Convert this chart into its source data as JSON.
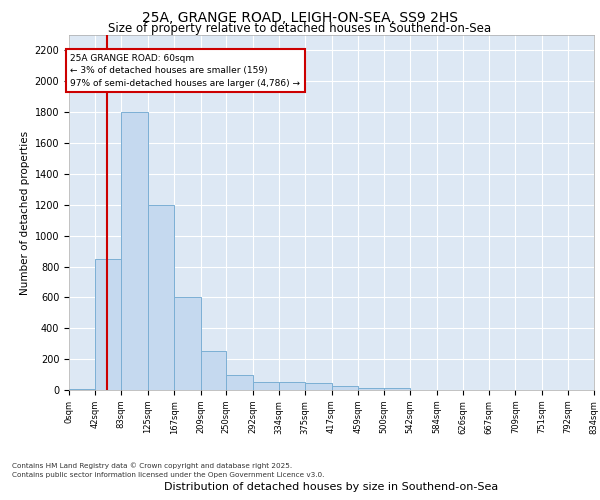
{
  "title1": "25A, GRANGE ROAD, LEIGH-ON-SEA, SS9 2HS",
  "title2": "Size of property relative to detached houses in Southend-on-Sea",
  "xlabel": "Distribution of detached houses by size in Southend-on-Sea",
  "ylabel": "Number of detached properties",
  "annotation_title": "25A GRANGE ROAD: 60sqm",
  "annotation_line1": "← 3% of detached houses are smaller (159)",
  "annotation_line2": "97% of semi-detached houses are larger (4,786) →",
  "bin_edges": [
    0,
    42,
    83,
    125,
    167,
    209,
    250,
    292,
    334,
    375,
    417,
    459,
    500,
    542,
    584,
    626,
    667,
    709,
    751,
    792,
    834
  ],
  "bar_heights": [
    5,
    850,
    1800,
    1200,
    600,
    255,
    95,
    55,
    50,
    45,
    25,
    15,
    10,
    0,
    0,
    0,
    0,
    0,
    0,
    0
  ],
  "bar_color": "#c5d9ef",
  "bar_edge_color": "#7bafd4",
  "vline_x": 60,
  "vline_color": "#cc0000",
  "annotation_box_color": "#cc0000",
  "background_color": "#dde8f4",
  "ylim": [
    0,
    2300
  ],
  "yticks": [
    0,
    200,
    400,
    600,
    800,
    1000,
    1200,
    1400,
    1600,
    1800,
    2000,
    2200
  ],
  "footer_line1": "Contains HM Land Registry data © Crown copyright and database right 2025.",
  "footer_line2": "Contains public sector information licensed under the Open Government Licence v3.0."
}
